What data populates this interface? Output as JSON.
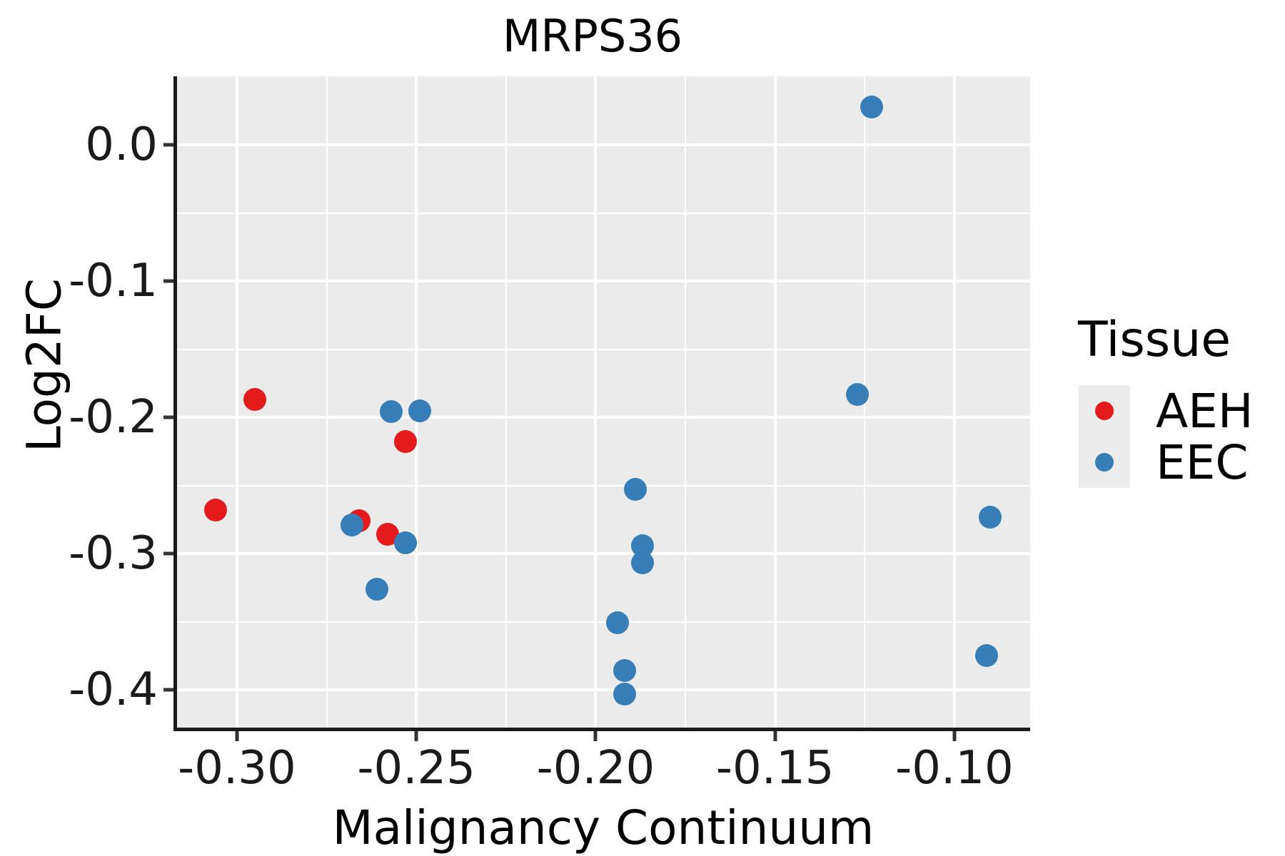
{
  "chart_data": {
    "type": "scatter",
    "title": "MRPS36",
    "xlabel": "Malignancy Continuum",
    "ylabel": "Log2FC",
    "xlim": [
      -0.3167,
      -0.0789
    ],
    "ylim": [
      -0.4277,
      0.0503
    ],
    "grid": {
      "major": true,
      "minor": true,
      "panel_background": "#EBEBEB",
      "gridline_color": "#FFFFFF"
    },
    "x_ticks": {
      "values": [
        -0.3,
        -0.25,
        -0.2,
        -0.15,
        -0.1
      ],
      "labels": [
        "-0.30",
        "-0.25",
        "-0.20",
        "-0.15",
        "-0.10"
      ]
    },
    "y_ticks": {
      "values": [
        0.0,
        -0.1,
        -0.2,
        -0.3,
        -0.4
      ],
      "labels": [
        "0.0",
        "-0.1",
        "-0.2",
        "-0.3",
        "-0.4"
      ]
    },
    "x_minor": [
      -0.275,
      -0.225,
      -0.175,
      -0.125
    ],
    "y_minor": [
      -0.05,
      -0.15,
      -0.25,
      -0.35
    ],
    "legend": {
      "title": "Tissue",
      "position": "right",
      "entries": [
        {
          "label": "AEH",
          "color": "#E41A1C"
        },
        {
          "label": "EEC",
          "color": "#377EB8"
        }
      ]
    },
    "series": [
      {
        "name": "AEH",
        "color": "#E41A1C",
        "points": [
          [
            -0.295,
            -0.187
          ],
          [
            -0.306,
            -0.268
          ],
          [
            -0.266,
            -0.276
          ],
          [
            -0.258,
            -0.286
          ],
          [
            -0.253,
            -0.218
          ]
        ]
      },
      {
        "name": "EEC",
        "color": "#377EB8",
        "points": [
          [
            -0.257,
            -0.196
          ],
          [
            -0.249,
            -0.195
          ],
          [
            -0.268,
            -0.279
          ],
          [
            -0.253,
            -0.292
          ],
          [
            -0.261,
            -0.326
          ],
          [
            -0.189,
            -0.253
          ],
          [
            -0.187,
            -0.294
          ],
          [
            -0.187,
            -0.307
          ],
          [
            -0.194,
            -0.351
          ],
          [
            -0.192,
            -0.386
          ],
          [
            -0.192,
            -0.403
          ],
          [
            -0.123,
            0.028
          ],
          [
            -0.127,
            -0.183
          ],
          [
            -0.09,
            -0.273
          ],
          [
            -0.091,
            -0.375
          ]
        ]
      }
    ]
  }
}
